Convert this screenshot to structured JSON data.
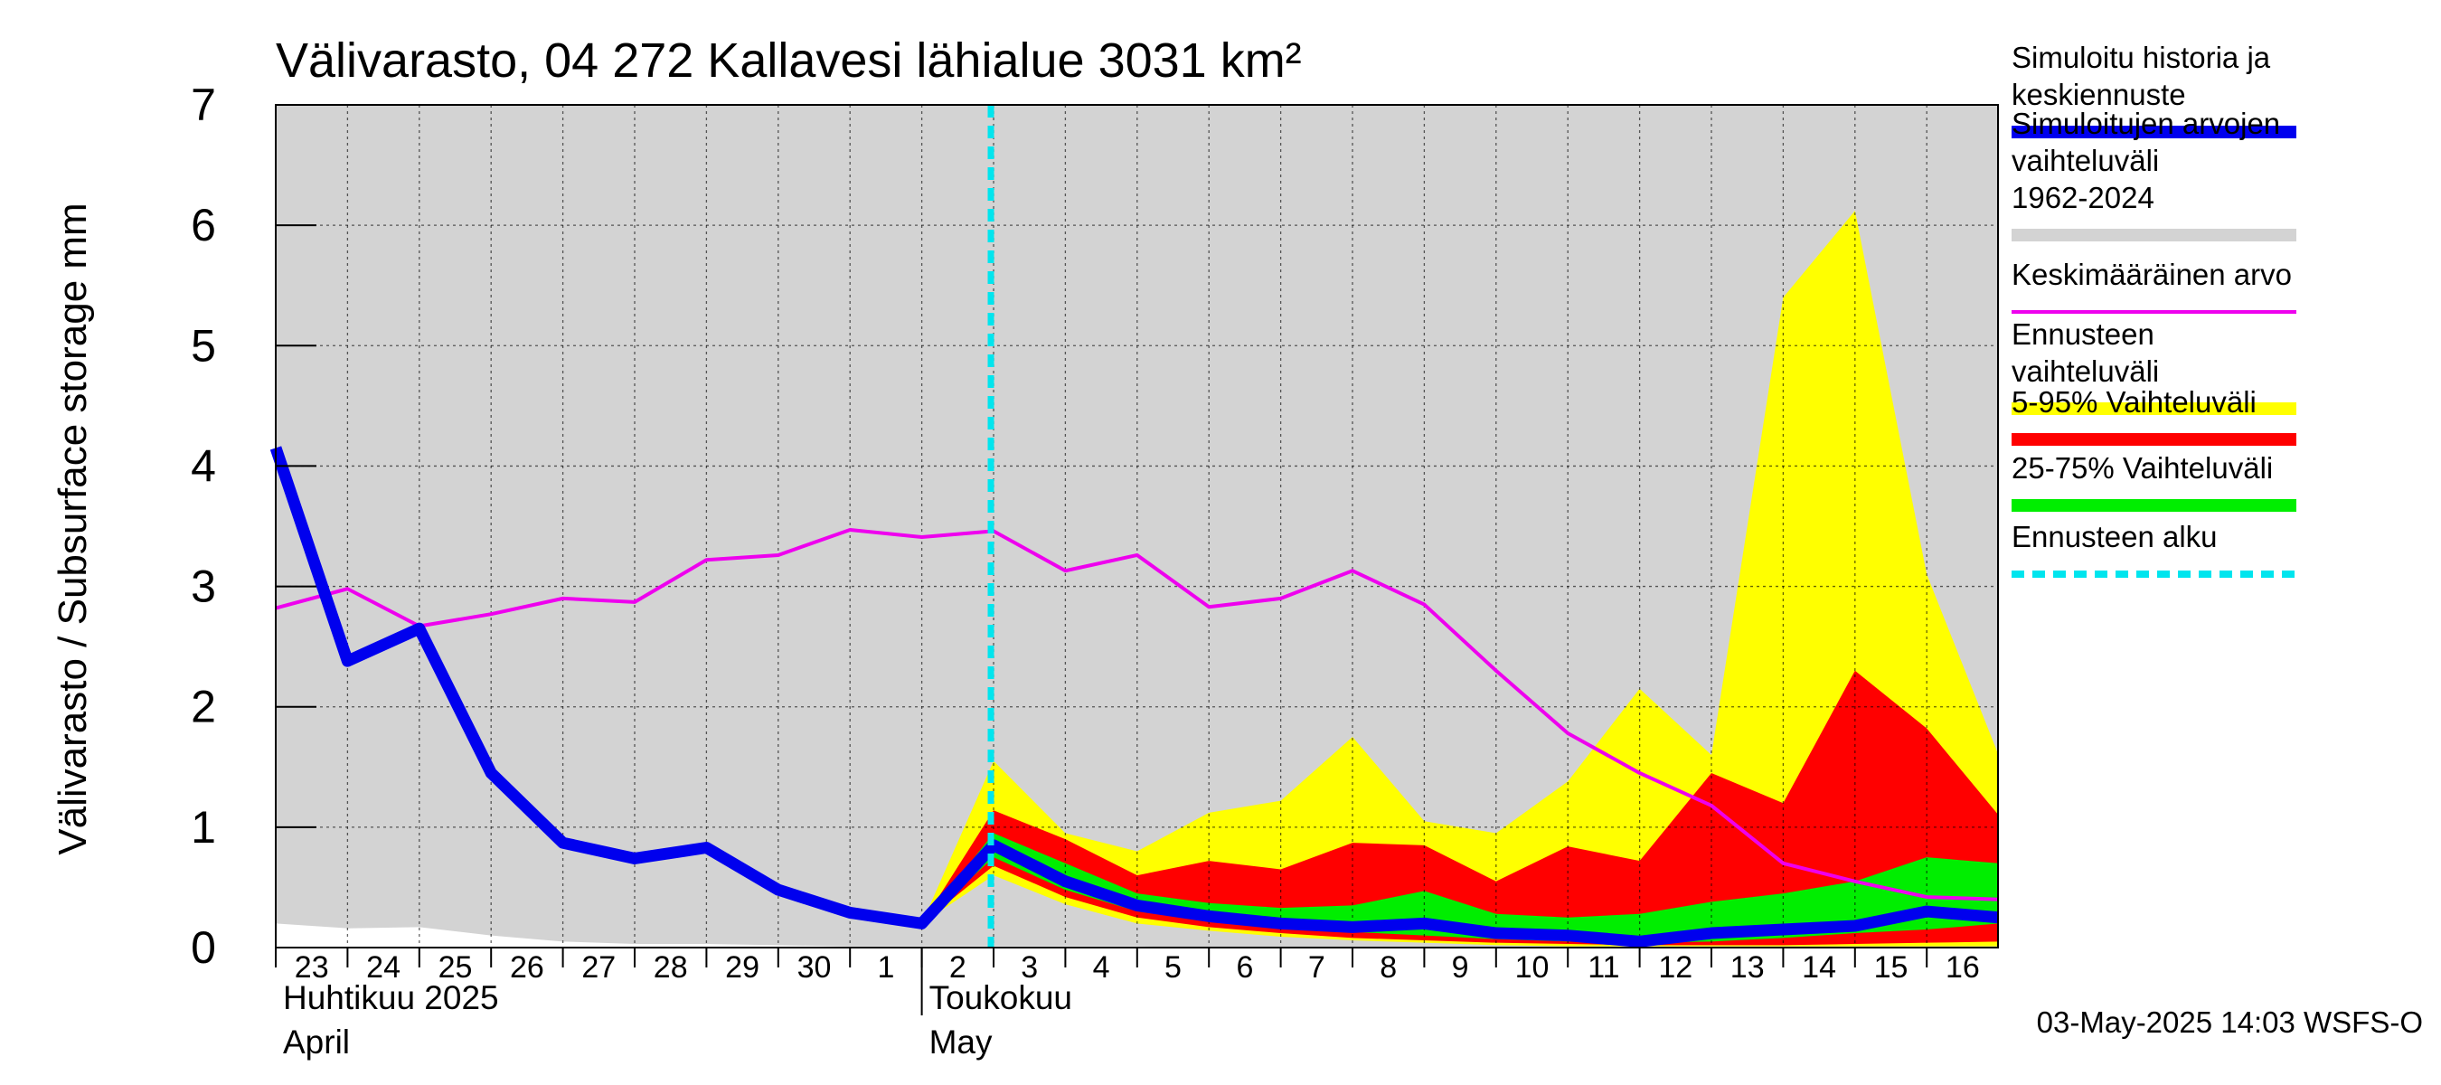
{
  "chart_data": {
    "type": "area",
    "title": "Välivarasto, 04 272 Kallavesi lähialue 3031 km²",
    "ylabel": "Välivarasto / Subsurface storage  mm",
    "ylim": [
      0,
      7
    ],
    "yticks": [
      0,
      1,
      2,
      3,
      4,
      5,
      6,
      7
    ],
    "grid": true,
    "day_labels": [
      "23",
      "24",
      "25",
      "26",
      "27",
      "28",
      "29",
      "30",
      "1",
      "2",
      "3",
      "4",
      "5",
      "6",
      "7",
      "8",
      "9",
      "10",
      "11",
      "12",
      "13",
      "14",
      "15",
      "16"
    ],
    "month_labels": [
      {
        "fi": "Huhtikuu  2025",
        "en": "April",
        "start_index": 0
      },
      {
        "fi": "Toukokuu",
        "en": "May",
        "start_index": 9
      }
    ],
    "forecast_start_index": 10,
    "footer": "03-May-2025 14:03 WSFS-O",
    "colors": {
      "plot_bg": "#d3d3d3",
      "history": "#0000ee",
      "mean": "#ee00ee",
      "forecast_range": "#ffff00",
      "p5_95": "#ff0000",
      "p25_75": "#00ee00",
      "forecast_start": "#00e5ee",
      "sim_range": "#d3d3d3"
    },
    "legend": [
      {
        "label": "Simuloitu historia ja keskiennuste",
        "color": "#0000ee",
        "style": "thick"
      },
      {
        "label": "Simuloitujen arvojen vaihteluväli 1962-2024",
        "color": "#d3d3d3",
        "style": "thick"
      },
      {
        "label": "Keskimääräinen arvo",
        "color": "#ee00ee",
        "style": "thin"
      },
      {
        "label": "Ennusteen vaihteluväli",
        "color": "#ffff00",
        "style": "thick"
      },
      {
        "label": "5-95% Vaihteluväli",
        "color": "#ff0000",
        "style": "thick"
      },
      {
        "label": "25-75% Vaihteluväli",
        "color": "#00ee00",
        "style": "thick"
      },
      {
        "label": "Ennusteen alku",
        "color": "#00e5ee",
        "style": "dashed"
      }
    ],
    "series": {
      "history_x": [
        0,
        1,
        2,
        3,
        4,
        5,
        6,
        7,
        8,
        9,
        10,
        11,
        12,
        13,
        14,
        15,
        16,
        17,
        18,
        19,
        20,
        21,
        22,
        23,
        24
      ],
      "history": [
        4.15,
        2.38,
        2.65,
        1.45,
        0.87,
        0.74,
        0.83,
        0.48,
        0.29,
        0.2,
        0.85,
        0.55,
        0.35,
        0.26,
        0.2,
        0.17,
        0.2,
        0.12,
        0.1,
        0.05,
        0.12,
        0.15,
        0.18,
        0.3,
        0.25
      ],
      "mean_x": [
        0,
        1,
        2,
        3,
        4,
        5,
        6,
        7,
        8,
        9,
        10,
        11,
        12,
        13,
        14,
        15,
        16,
        17,
        18,
        19,
        20,
        21,
        22,
        23,
        24
      ],
      "mean": [
        2.82,
        2.98,
        2.67,
        2.77,
        2.9,
        2.87,
        3.22,
        3.26,
        3.47,
        3.41,
        3.46,
        3.13,
        3.26,
        2.83,
        2.9,
        3.13,
        2.85,
        2.3,
        1.78,
        1.45,
        1.18,
        0.7,
        0.55,
        0.42,
        0.4
      ],
      "sim_range_x": [
        0,
        1,
        2,
        3,
        4,
        5,
        6,
        7,
        8,
        9,
        10,
        11,
        12,
        13,
        14,
        15,
        16,
        17,
        18,
        19,
        20,
        21,
        22,
        23,
        24
      ],
      "sim_range_min": [
        0.2,
        0.16,
        0.17,
        0.1,
        0.05,
        0.03,
        0.03,
        0.02,
        0.01,
        0.01,
        0.01,
        0.01,
        0.01,
        0.0,
        0.0,
        0.0,
        0.0,
        0.0,
        0.0,
        0.0,
        0.0,
        0.0,
        0.0,
        0.0,
        0.0
      ],
      "forecast_x": [
        9,
        10,
        11,
        12,
        13,
        14,
        15,
        16,
        17,
        18,
        19,
        20,
        21,
        22,
        23,
        24
      ],
      "yellow_max": [
        0.2,
        1.55,
        0.95,
        0.8,
        1.12,
        1.22,
        1.75,
        1.05,
        0.95,
        1.38,
        2.15,
        1.6,
        5.4,
        6.12,
        3.1,
        1.6
      ],
      "red_max": [
        0.2,
        1.14,
        0.9,
        0.6,
        0.72,
        0.65,
        0.87,
        0.85,
        0.55,
        0.84,
        0.72,
        1.45,
        1.2,
        2.3,
        1.82,
        1.1
      ],
      "green_max": [
        0.2,
        0.95,
        0.7,
        0.45,
        0.37,
        0.33,
        0.35,
        0.47,
        0.28,
        0.25,
        0.28,
        0.38,
        0.45,
        0.55,
        0.75,
        0.7
      ],
      "green_min": [
        0.2,
        0.75,
        0.48,
        0.3,
        0.22,
        0.17,
        0.13,
        0.1,
        0.07,
        0.05,
        0.04,
        0.05,
        0.08,
        0.12,
        0.15,
        0.2
      ],
      "red_min": [
        0.2,
        0.68,
        0.42,
        0.25,
        0.17,
        0.12,
        0.08,
        0.06,
        0.04,
        0.03,
        0.02,
        0.02,
        0.02,
        0.03,
        0.04,
        0.05
      ],
      "yellow_min": [
        0.2,
        0.6,
        0.36,
        0.2,
        0.14,
        0.09,
        0.06,
        0.04,
        0.02,
        0.01,
        0.01,
        0.01,
        0.01,
        0.01,
        0.01,
        0.01
      ]
    }
  }
}
